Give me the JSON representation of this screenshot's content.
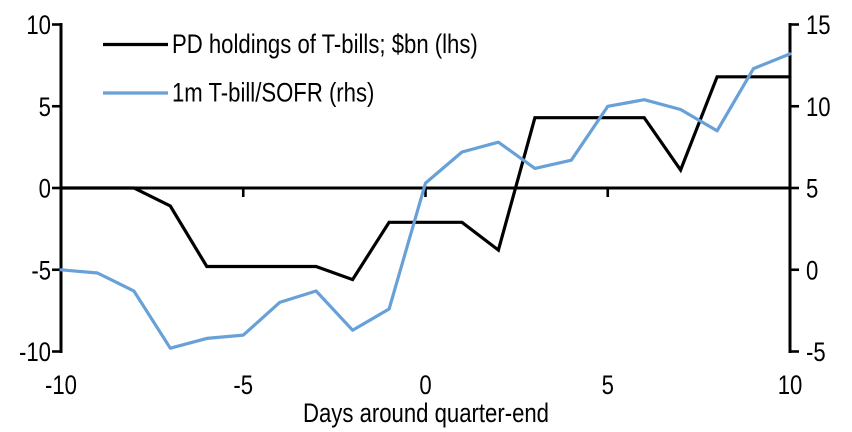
{
  "figure": {
    "background_color": "#ffffff",
    "text_color": "#000000"
  },
  "legend": {
    "position": "top-left",
    "items": [
      {
        "label": "PD holdings of T-bills; $bn (lhs)",
        "color": "#000000"
      },
      {
        "label": "1m T-bill/SOFR (rhs)",
        "color": "#68A0D8"
      }
    ]
  },
  "chart_data": {
    "type": "line",
    "title": "",
    "xlabel": "Days around quarter-end",
    "ylabel_left": "",
    "ylabel_right": "",
    "grid": false,
    "x": [
      -10,
      -9,
      -8,
      -7,
      -6,
      -5,
      -4,
      -3,
      -2,
      -1,
      0,
      1,
      2,
      3,
      4,
      5,
      6,
      7,
      8,
      9,
      10
    ],
    "series": [
      {
        "name": "PD holdings of T-bills; $bn (lhs)",
        "axis": "left",
        "color": "#000000",
        "values": [
          0.0,
          0.0,
          0.0,
          -1.1,
          -4.8,
          -4.8,
          -4.8,
          -4.8,
          -5.6,
          -2.1,
          -2.1,
          -2.1,
          -3.8,
          4.3,
          4.3,
          4.3,
          4.3,
          1.1,
          6.8,
          6.8,
          6.8
        ]
      },
      {
        "name": "1m T-bill/SOFR (rhs)",
        "axis": "right",
        "color": "#68A0D8",
        "values": [
          0.0,
          -0.2,
          -1.3,
          -4.8,
          -4.2,
          -4.0,
          -2.0,
          -1.3,
          -3.7,
          -2.4,
          5.3,
          7.2,
          7.8,
          6.2,
          6.7,
          10.0,
          10.4,
          9.8,
          8.5,
          12.3,
          13.2
        ]
      }
    ],
    "left_axis": {
      "range": [
        -10,
        10
      ],
      "ticks": [
        10,
        5,
        0,
        -5,
        -10
      ]
    },
    "right_axis": {
      "range": [
        -5,
        15
      ],
      "ticks": [
        15,
        10,
        5,
        0,
        -5
      ]
    },
    "x_axis": {
      "range": [
        -10,
        10
      ],
      "tick_labels": [
        -10,
        -5,
        0,
        5,
        10
      ],
      "tick_marks": [
        -5,
        0,
        5
      ],
      "zero_line": true
    }
  }
}
